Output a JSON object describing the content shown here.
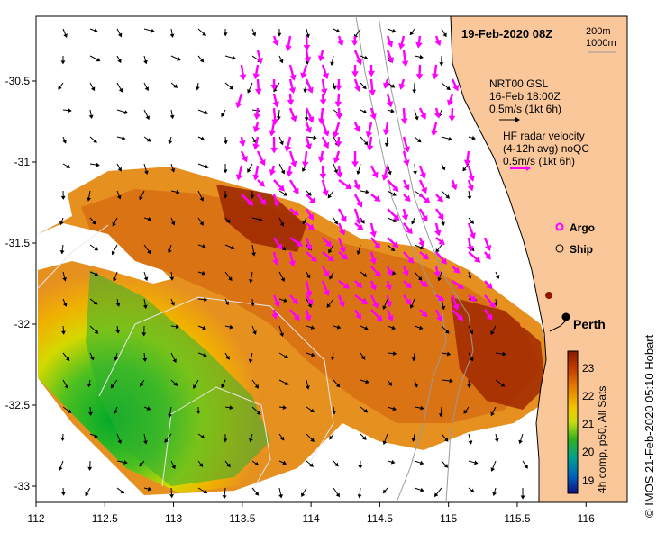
{
  "title": "19-Feb-2020 08Z",
  "contours": {
    "line1": "200m",
    "line2": "1000m"
  },
  "model": {
    "line1": "NRT00 GSL",
    "line2": "16-Feb 18:00Z",
    "line3": "0.5m/s (1kt 6h)"
  },
  "radar": {
    "line1": "HF radar velocity",
    "line2": "(4-12h avg) noQC",
    "line3": "0.5m/s (1kt 6h)"
  },
  "markers": {
    "argo": "Argo",
    "ship": "Ship",
    "city": "Perth"
  },
  "colorbar": {
    "label": "4h comp, p50, All Sats",
    "ticks": [
      "23",
      "22",
      "21",
      "20",
      "19"
    ]
  },
  "credit": "© IMOS 21-Feb-2020 05:10 Hobart",
  "axes": {
    "x_ticks": [
      "112",
      "112.5",
      "113",
      "113.5",
      "114",
      "114.5",
      "115",
      "115.5",
      "116"
    ],
    "y_ticks": [
      "-30.5",
      "-31",
      "-31.5",
      "-32",
      "-32.5",
      "-33"
    ],
    "xlim": [
      112,
      116.3
    ],
    "ylim": [
      -33.1,
      -30.1
    ]
  },
  "colors": {
    "land": "#f9c79a",
    "radar_arrows": "#ff00ff",
    "model_arrows": "#000000",
    "bathymetry": "#9a9a9a",
    "sst_warm": "#8b1a00",
    "sst_cool": "#00a020"
  }
}
